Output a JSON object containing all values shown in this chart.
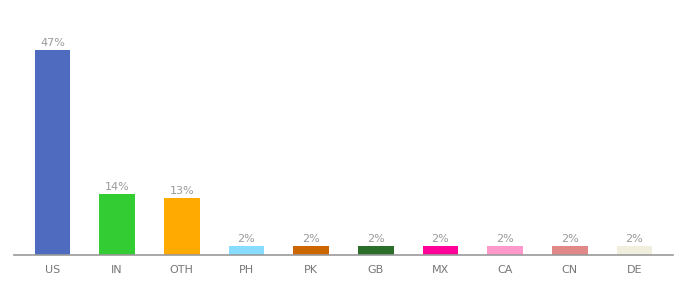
{
  "categories": [
    "US",
    "IN",
    "OTH",
    "PH",
    "PK",
    "GB",
    "MX",
    "CA",
    "CN",
    "DE"
  ],
  "values": [
    47,
    14,
    13,
    2,
    2,
    2,
    2,
    2,
    2,
    2
  ],
  "bar_colors": [
    "#4f6bbf",
    "#33cc33",
    "#ffaa00",
    "#88ddff",
    "#cc6600",
    "#2a6e2a",
    "#ff0099",
    "#ff99cc",
    "#e08888",
    "#f0eedd"
  ],
  "labels": [
    "47%",
    "14%",
    "13%",
    "2%",
    "2%",
    "2%",
    "2%",
    "2%",
    "2%",
    "2%"
  ],
  "ylim": [
    0,
    53
  ],
  "background_color": "#ffffff",
  "label_fontsize": 8,
  "tick_fontsize": 8,
  "label_color": "#999999",
  "tick_color": "#777777",
  "bar_width": 0.55
}
